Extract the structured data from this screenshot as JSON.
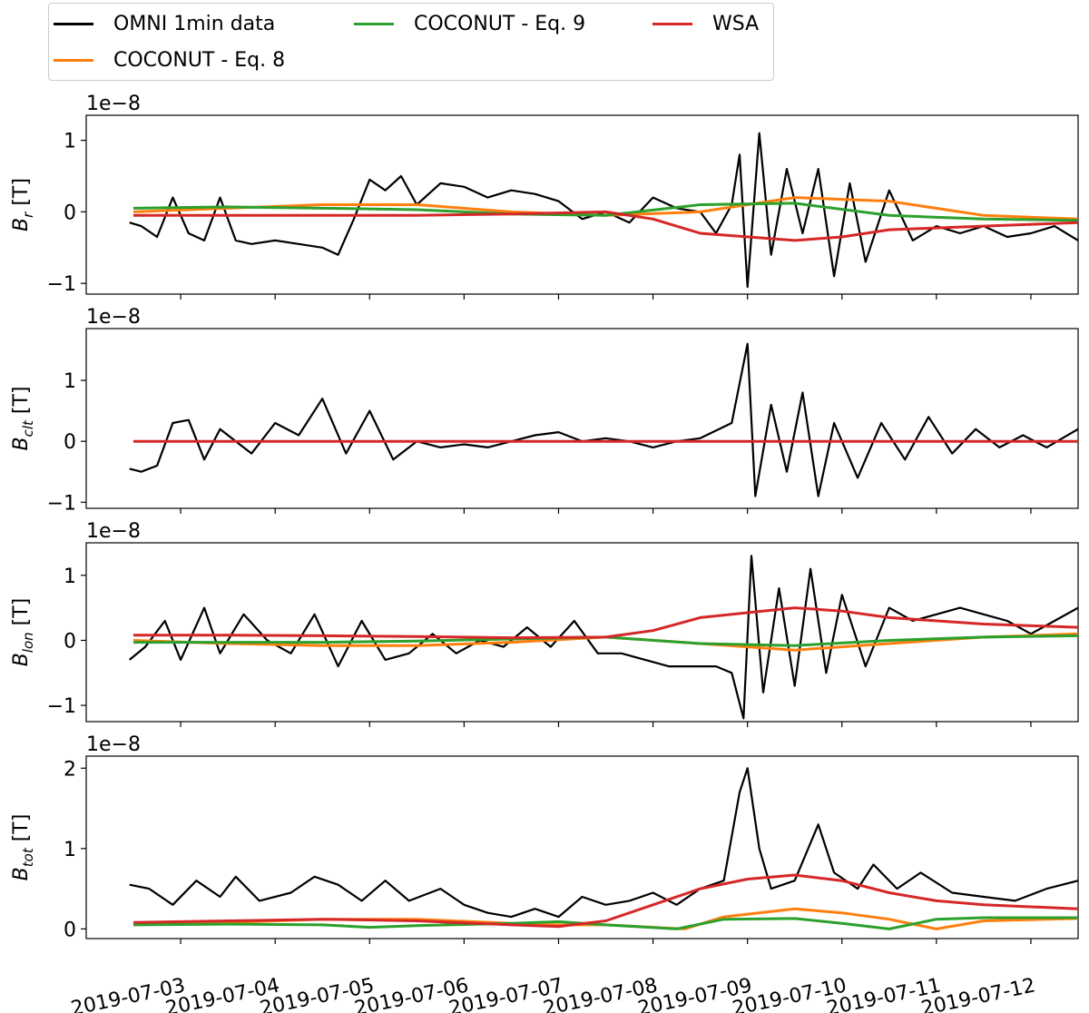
{
  "legend": {
    "entries": [
      {
        "label": "OMNI 1min data",
        "color": "#000000"
      },
      {
        "label": "COCONUT - Eq. 8",
        "color": "#ff7f0e"
      },
      {
        "label": "COCONUT - Eq. 9",
        "color": "#2ca02c"
      },
      {
        "label": "WSA",
        "color": "#d62728"
      }
    ]
  },
  "chart_data": [
    {
      "type": "line",
      "panel": "Br",
      "ylabel": "B_r [T]",
      "ylabel_base": "B",
      "ylabel_sub": "r",
      "ylabel_unit": " [T]",
      "offset_text": "1e−8",
      "ylim": [
        -1.15,
        1.35
      ],
      "yticks": [
        -1,
        0,
        1
      ],
      "ytick_labels": [
        "−1",
        "0",
        "1"
      ],
      "xlim": [
        "2019-07-02 00:00",
        "2019-07-12 12:00"
      ],
      "series": [
        {
          "name": "OMNI 1min data",
          "color": "#000000",
          "x": [
            "2019-07-02 11:00",
            "2019-07-02 14:00",
            "2019-07-02 18:00",
            "2019-07-02 22:00",
            "2019-07-03 02:00",
            "2019-07-03 06:00",
            "2019-07-03 10:00",
            "2019-07-03 14:00",
            "2019-07-03 18:00",
            "2019-07-04 00:00",
            "2019-07-04 06:00",
            "2019-07-04 12:00",
            "2019-07-04 16:00",
            "2019-07-04 20:00",
            "2019-07-05 00:00",
            "2019-07-05 04:00",
            "2019-07-05 08:00",
            "2019-07-05 12:00",
            "2019-07-05 18:00",
            "2019-07-06 00:00",
            "2019-07-06 06:00",
            "2019-07-06 12:00",
            "2019-07-06 18:00",
            "2019-07-07 00:00",
            "2019-07-07 06:00",
            "2019-07-07 12:00",
            "2019-07-07 18:00",
            "2019-07-08 00:00",
            "2019-07-08 06:00",
            "2019-07-08 12:00",
            "2019-07-08 16:00",
            "2019-07-08 20:00",
            "2019-07-08 22:00",
            "2019-07-09 00:00",
            "2019-07-09 03:00",
            "2019-07-09 06:00",
            "2019-07-09 10:00",
            "2019-07-09 14:00",
            "2019-07-09 18:00",
            "2019-07-09 22:00",
            "2019-07-10 02:00",
            "2019-07-10 06:00",
            "2019-07-10 12:00",
            "2019-07-10 18:00",
            "2019-07-11 00:00",
            "2019-07-11 06:00",
            "2019-07-11 12:00",
            "2019-07-11 18:00",
            "2019-07-12 00:00",
            "2019-07-12 06:00",
            "2019-07-12 12:00"
          ],
          "y": [
            -0.15,
            -0.2,
            -0.35,
            0.2,
            -0.3,
            -0.4,
            0.2,
            -0.4,
            -0.45,
            -0.4,
            -0.45,
            -0.5,
            -0.6,
            -0.1,
            0.45,
            0.3,
            0.5,
            0.1,
            0.4,
            0.35,
            0.2,
            0.3,
            0.25,
            0.15,
            -0.1,
            0.0,
            -0.15,
            0.2,
            0.05,
            0.0,
            -0.3,
            0.1,
            0.8,
            -1.05,
            1.1,
            -0.6,
            0.6,
            -0.3,
            0.6,
            -0.9,
            0.4,
            -0.7,
            0.3,
            -0.4,
            -0.2,
            -0.3,
            -0.2,
            -0.35,
            -0.3,
            -0.2,
            -0.4
          ]
        },
        {
          "name": "COCONUT - Eq. 8",
          "color": "#ff7f0e",
          "x": [
            "2019-07-02 12:00",
            "2019-07-03 12:00",
            "2019-07-04 12:00",
            "2019-07-05 12:00",
            "2019-07-06 12:00",
            "2019-07-07 12:00",
            "2019-07-08 12:00",
            "2019-07-09 12:00",
            "2019-07-10 12:00",
            "2019-07-11 12:00",
            "2019-07-12 12:00"
          ],
          "y": [
            0.0,
            0.05,
            0.1,
            0.1,
            0.0,
            -0.05,
            0.0,
            0.2,
            0.15,
            -0.05,
            -0.1
          ]
        },
        {
          "name": "COCONUT - Eq. 9",
          "color": "#2ca02c",
          "x": [
            "2019-07-02 12:00",
            "2019-07-03 12:00",
            "2019-07-04 12:00",
            "2019-07-05 12:00",
            "2019-07-06 12:00",
            "2019-07-07 12:00",
            "2019-07-08 12:00",
            "2019-07-09 12:00",
            "2019-07-10 12:00",
            "2019-07-11 12:00",
            "2019-07-12 12:00"
          ],
          "y": [
            0.05,
            0.07,
            0.05,
            0.03,
            -0.03,
            -0.05,
            0.1,
            0.12,
            -0.05,
            -0.1,
            -0.12
          ]
        },
        {
          "name": "WSA",
          "color": "#d62728",
          "x": [
            "2019-07-02 12:00",
            "2019-07-03 12:00",
            "2019-07-04 12:00",
            "2019-07-05 12:00",
            "2019-07-06 12:00",
            "2019-07-07 12:00",
            "2019-07-08 00:00",
            "2019-07-08 12:00",
            "2019-07-09 12:00",
            "2019-07-10 00:00",
            "2019-07-10 12:00",
            "2019-07-11 12:00",
            "2019-07-12 12:00"
          ],
          "y": [
            -0.05,
            -0.05,
            -0.05,
            -0.05,
            -0.03,
            0.0,
            -0.1,
            -0.3,
            -0.4,
            -0.35,
            -0.25,
            -0.2,
            -0.15
          ]
        }
      ]
    },
    {
      "type": "line",
      "panel": "Bclt",
      "ylabel": "B_clt [T]",
      "ylabel_base": "B",
      "ylabel_sub": "clt",
      "ylabel_unit": " [T]",
      "offset_text": "1e−8",
      "ylim": [
        -1.1,
        1.85
      ],
      "yticks": [
        -1,
        0,
        1
      ],
      "ytick_labels": [
        "−1",
        "0",
        "1"
      ],
      "xlim": [
        "2019-07-02 00:00",
        "2019-07-12 12:00"
      ],
      "series": [
        {
          "name": "OMNI 1min data",
          "color": "#000000",
          "x": [
            "2019-07-02 11:00",
            "2019-07-02 14:00",
            "2019-07-02 18:00",
            "2019-07-02 22:00",
            "2019-07-03 02:00",
            "2019-07-03 06:00",
            "2019-07-03 10:00",
            "2019-07-03 14:00",
            "2019-07-03 18:00",
            "2019-07-04 00:00",
            "2019-07-04 06:00",
            "2019-07-04 12:00",
            "2019-07-04 18:00",
            "2019-07-05 00:00",
            "2019-07-05 06:00",
            "2019-07-05 12:00",
            "2019-07-05 18:00",
            "2019-07-06 00:00",
            "2019-07-06 06:00",
            "2019-07-06 12:00",
            "2019-07-06 18:00",
            "2019-07-07 00:00",
            "2019-07-07 06:00",
            "2019-07-07 12:00",
            "2019-07-07 18:00",
            "2019-07-08 00:00",
            "2019-07-08 06:00",
            "2019-07-08 12:00",
            "2019-07-08 20:00",
            "2019-07-09 00:00",
            "2019-07-09 02:00",
            "2019-07-09 06:00",
            "2019-07-09 10:00",
            "2019-07-09 14:00",
            "2019-07-09 18:00",
            "2019-07-09 22:00",
            "2019-07-10 04:00",
            "2019-07-10 10:00",
            "2019-07-10 16:00",
            "2019-07-10 22:00",
            "2019-07-11 04:00",
            "2019-07-11 10:00",
            "2019-07-11 16:00",
            "2019-07-11 22:00",
            "2019-07-12 04:00",
            "2019-07-12 12:00"
          ],
          "y": [
            -0.45,
            -0.5,
            -0.4,
            0.3,
            0.35,
            -0.3,
            0.2,
            0.0,
            -0.2,
            0.3,
            0.1,
            0.7,
            -0.2,
            0.5,
            -0.3,
            0.0,
            -0.1,
            -0.05,
            -0.1,
            0.0,
            0.1,
            0.15,
            0.0,
            0.05,
            0.0,
            -0.1,
            0.0,
            0.05,
            0.3,
            1.6,
            -0.9,
            0.6,
            -0.5,
            0.8,
            -0.9,
            0.3,
            -0.6,
            0.3,
            -0.3,
            0.4,
            -0.2,
            0.2,
            -0.1,
            0.1,
            -0.1,
            0.2
          ]
        },
        {
          "name": "WSA",
          "color": "#d62728",
          "x": [
            "2019-07-02 12:00",
            "2019-07-12 12:00"
          ],
          "y": [
            0.0,
            0.0
          ]
        }
      ]
    },
    {
      "type": "line",
      "panel": "Blon",
      "ylabel": "B_lon [T]",
      "ylabel_base": "B",
      "ylabel_sub": "lon",
      "ylabel_unit": " [T]",
      "offset_text": "1e−8",
      "ylim": [
        -1.25,
        1.5
      ],
      "yticks": [
        -1,
        0,
        1
      ],
      "ytick_labels": [
        "−1",
        "0",
        "1"
      ],
      "xlim": [
        "2019-07-02 00:00",
        "2019-07-12 12:00"
      ],
      "series": [
        {
          "name": "OMNI 1min data",
          "color": "#000000",
          "x": [
            "2019-07-02 11:00",
            "2019-07-02 15:00",
            "2019-07-02 20:00",
            "2019-07-03 00:00",
            "2019-07-03 06:00",
            "2019-07-03 10:00",
            "2019-07-03 16:00",
            "2019-07-03 22:00",
            "2019-07-04 04:00",
            "2019-07-04 10:00",
            "2019-07-04 16:00",
            "2019-07-04 22:00",
            "2019-07-05 04:00",
            "2019-07-05 10:00",
            "2019-07-05 16:00",
            "2019-07-05 22:00",
            "2019-07-06 04:00",
            "2019-07-06 10:00",
            "2019-07-06 16:00",
            "2019-07-06 22:00",
            "2019-07-07 04:00",
            "2019-07-07 10:00",
            "2019-07-07 16:00",
            "2019-07-07 22:00",
            "2019-07-08 04:00",
            "2019-07-08 10:00",
            "2019-07-08 16:00",
            "2019-07-08 20:00",
            "2019-07-08 23:00",
            "2019-07-09 01:00",
            "2019-07-09 04:00",
            "2019-07-09 08:00",
            "2019-07-09 12:00",
            "2019-07-09 16:00",
            "2019-07-09 20:00",
            "2019-07-10 00:00",
            "2019-07-10 06:00",
            "2019-07-10 12:00",
            "2019-07-10 18:00",
            "2019-07-11 00:00",
            "2019-07-11 06:00",
            "2019-07-11 12:00",
            "2019-07-11 18:00",
            "2019-07-12 00:00",
            "2019-07-12 06:00",
            "2019-07-12 12:00"
          ],
          "y": [
            -0.3,
            -0.1,
            0.3,
            -0.3,
            0.5,
            -0.2,
            0.4,
            0.0,
            -0.2,
            0.4,
            -0.4,
            0.3,
            -0.3,
            -0.2,
            0.1,
            -0.2,
            0.0,
            -0.1,
            0.2,
            -0.1,
            0.3,
            -0.2,
            -0.2,
            -0.3,
            -0.4,
            -0.4,
            -0.4,
            -0.5,
            -1.2,
            1.3,
            -0.8,
            0.8,
            -0.7,
            1.1,
            -0.5,
            0.7,
            -0.4,
            0.5,
            0.3,
            0.4,
            0.5,
            0.4,
            0.3,
            0.1,
            0.3,
            0.5
          ]
        },
        {
          "name": "COCONUT - Eq. 8",
          "color": "#ff7f0e",
          "x": [
            "2019-07-02 12:00",
            "2019-07-03 12:00",
            "2019-07-04 12:00",
            "2019-07-05 12:00",
            "2019-07-06 12:00",
            "2019-07-07 12:00",
            "2019-07-08 12:00",
            "2019-07-09 12:00",
            "2019-07-10 12:00",
            "2019-07-11 12:00",
            "2019-07-12 12:00"
          ],
          "y": [
            0.0,
            -0.05,
            -0.08,
            -0.08,
            -0.03,
            0.05,
            -0.05,
            -0.15,
            -0.05,
            0.05,
            0.1
          ]
        },
        {
          "name": "COCONUT - Eq. 9",
          "color": "#2ca02c",
          "x": [
            "2019-07-02 12:00",
            "2019-07-03 12:00",
            "2019-07-04 12:00",
            "2019-07-05 12:00",
            "2019-07-06 12:00",
            "2019-07-07 12:00",
            "2019-07-08 12:00",
            "2019-07-09 12:00",
            "2019-07-10 12:00",
            "2019-07-11 12:00",
            "2019-07-12 12:00"
          ],
          "y": [
            -0.03,
            -0.03,
            -0.03,
            -0.01,
            0.02,
            0.05,
            -0.05,
            -0.08,
            0.0,
            0.05,
            0.07
          ]
        },
        {
          "name": "WSA",
          "color": "#d62728",
          "x": [
            "2019-07-02 12:00",
            "2019-07-03 12:00",
            "2019-07-04 12:00",
            "2019-07-05 12:00",
            "2019-07-06 12:00",
            "2019-07-07 12:00",
            "2019-07-08 00:00",
            "2019-07-08 12:00",
            "2019-07-09 12:00",
            "2019-07-10 00:00",
            "2019-07-10 12:00",
            "2019-07-11 12:00",
            "2019-07-12 12:00"
          ],
          "y": [
            0.08,
            0.08,
            0.07,
            0.06,
            0.04,
            0.05,
            0.15,
            0.35,
            0.5,
            0.45,
            0.35,
            0.25,
            0.2
          ]
        }
      ]
    },
    {
      "type": "line",
      "panel": "Btot",
      "ylabel": "B_tot [T]",
      "ylabel_base": "B",
      "ylabel_sub": "tot",
      "ylabel_unit": " [T]",
      "offset_text": "1e−8",
      "ylim": [
        -0.12,
        2.15
      ],
      "yticks": [
        0,
        1,
        2
      ],
      "ytick_labels": [
        "0",
        "1",
        "2"
      ],
      "xlim": [
        "2019-07-02 00:00",
        "2019-07-12 12:00"
      ],
      "xticks": [
        "2019-07-03",
        "2019-07-04",
        "2019-07-05",
        "2019-07-06",
        "2019-07-07",
        "2019-07-08",
        "2019-07-09",
        "2019-07-10",
        "2019-07-11",
        "2019-07-12"
      ],
      "series": [
        {
          "name": "OMNI 1min data",
          "color": "#000000",
          "x": [
            "2019-07-02 11:00",
            "2019-07-02 16:00",
            "2019-07-02 22:00",
            "2019-07-03 04:00",
            "2019-07-03 10:00",
            "2019-07-03 14:00",
            "2019-07-03 20:00",
            "2019-07-04 04:00",
            "2019-07-04 10:00",
            "2019-07-04 16:00",
            "2019-07-04 22:00",
            "2019-07-05 04:00",
            "2019-07-05 10:00",
            "2019-07-05 18:00",
            "2019-07-06 00:00",
            "2019-07-06 06:00",
            "2019-07-06 12:00",
            "2019-07-06 18:00",
            "2019-07-07 00:00",
            "2019-07-07 06:00",
            "2019-07-07 12:00",
            "2019-07-07 18:00",
            "2019-07-08 00:00",
            "2019-07-08 06:00",
            "2019-07-08 12:00",
            "2019-07-08 18:00",
            "2019-07-08 22:00",
            "2019-07-09 00:00",
            "2019-07-09 03:00",
            "2019-07-09 06:00",
            "2019-07-09 12:00",
            "2019-07-09 18:00",
            "2019-07-09 22:00",
            "2019-07-10 04:00",
            "2019-07-10 08:00",
            "2019-07-10 14:00",
            "2019-07-10 20:00",
            "2019-07-11 04:00",
            "2019-07-11 12:00",
            "2019-07-11 20:00",
            "2019-07-12 04:00",
            "2019-07-12 12:00"
          ],
          "y": [
            0.55,
            0.5,
            0.3,
            0.6,
            0.4,
            0.65,
            0.35,
            0.45,
            0.65,
            0.55,
            0.35,
            0.6,
            0.35,
            0.5,
            0.3,
            0.2,
            0.15,
            0.25,
            0.15,
            0.4,
            0.3,
            0.35,
            0.45,
            0.3,
            0.5,
            0.6,
            1.7,
            2.0,
            1.0,
            0.5,
            0.6,
            1.3,
            0.7,
            0.5,
            0.8,
            0.5,
            0.7,
            0.45,
            0.4,
            0.35,
            0.5,
            0.6
          ]
        },
        {
          "name": "COCONUT - Eq. 8",
          "color": "#ff7f0e",
          "x": [
            "2019-07-02 12:00",
            "2019-07-03 12:00",
            "2019-07-04 12:00",
            "2019-07-05 12:00",
            "2019-07-06 12:00",
            "2019-07-07 00:00",
            "2019-07-07 12:00",
            "2019-07-08 08:00",
            "2019-07-08 18:00",
            "2019-07-09 12:00",
            "2019-07-10 00:00",
            "2019-07-10 12:00",
            "2019-07-11 00:00",
            "2019-07-11 12:00",
            "2019-07-12 12:00"
          ],
          "y": [
            0.05,
            0.08,
            0.12,
            0.12,
            0.07,
            0.05,
            0.05,
            0.0,
            0.15,
            0.25,
            0.2,
            0.12,
            0.0,
            0.1,
            0.13
          ]
        },
        {
          "name": "COCONUT - Eq. 9",
          "color": "#2ca02c",
          "x": [
            "2019-07-02 12:00",
            "2019-07-03 12:00",
            "2019-07-04 12:00",
            "2019-07-05 00:00",
            "2019-07-05 12:00",
            "2019-07-06 12:00",
            "2019-07-07 00:00",
            "2019-07-07 12:00",
            "2019-07-08 06:00",
            "2019-07-08 18:00",
            "2019-07-09 12:00",
            "2019-07-10 00:00",
            "2019-07-10 12:00",
            "2019-07-11 00:00",
            "2019-07-11 12:00",
            "2019-07-12 12:00"
          ],
          "y": [
            0.05,
            0.06,
            0.05,
            0.02,
            0.04,
            0.07,
            0.09,
            0.05,
            0.0,
            0.12,
            0.13,
            0.07,
            0.0,
            0.12,
            0.14,
            0.14
          ]
        },
        {
          "name": "WSA",
          "color": "#d62728",
          "x": [
            "2019-07-02 12:00",
            "2019-07-03 12:00",
            "2019-07-04 12:00",
            "2019-07-05 12:00",
            "2019-07-06 12:00",
            "2019-07-07 00:00",
            "2019-07-07 12:00",
            "2019-07-08 00:00",
            "2019-07-08 12:00",
            "2019-07-09 00:00",
            "2019-07-09 12:00",
            "2019-07-10 00:00",
            "2019-07-10 12:00",
            "2019-07-11 00:00",
            "2019-07-11 12:00",
            "2019-07-12 12:00"
          ],
          "y": [
            0.08,
            0.1,
            0.12,
            0.1,
            0.05,
            0.03,
            0.1,
            0.3,
            0.5,
            0.62,
            0.67,
            0.6,
            0.45,
            0.35,
            0.3,
            0.25
          ]
        }
      ]
    }
  ]
}
